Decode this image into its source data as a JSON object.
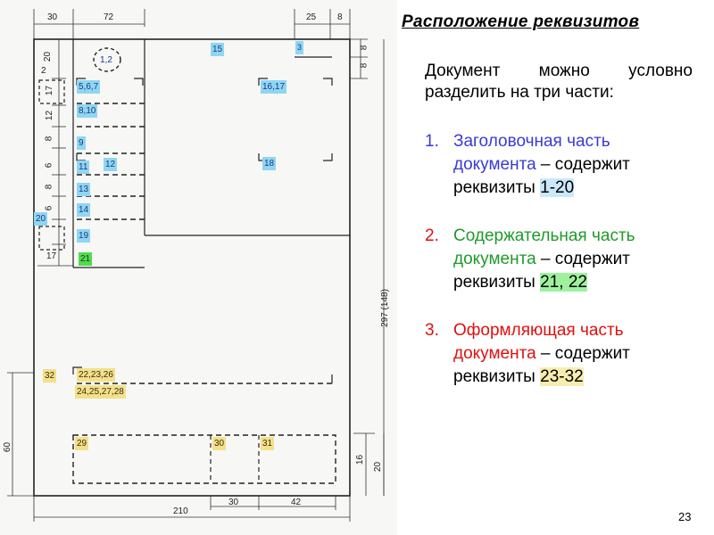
{
  "slide": {
    "title": "Расположение реквизитов",
    "intro": "Документ можно условно разделить на три части:",
    "items": [
      {
        "number": "1.",
        "part": "Заголовочная часть документа",
        "connector": " – содержит реквизиты ",
        "range": "1-20",
        "color": "#3a3ad6",
        "highlight": "#c9e9fb"
      },
      {
        "number": "2.",
        "part": "Содержательная часть документа",
        "connector": " – содержит реквизиты ",
        "range": "21, 22",
        "color": "#1f9a2a",
        "highlight": "#9ef29e"
      },
      {
        "number": "3.",
        "part": "Оформляющая часть документа",
        "connector": " – содержит реквизиты ",
        "range": "23-32",
        "color": "#e01010",
        "highlight": "#f7edb0"
      }
    ],
    "page_number": "23"
  },
  "diagram": {
    "field_labels": {
      "f12": "1,2",
      "f567": "5,6,7",
      "f810": "8,10",
      "f9": "9",
      "f11": "11",
      "f12b": "12",
      "f13": "13",
      "f14": "14",
      "f15": "15",
      "f3": "3",
      "f1617": "16,17",
      "f18": "18",
      "f19": "19",
      "f20": "20",
      "f21": "21",
      "f32": "32",
      "f22": "22,23,26",
      "f24": "24,25,27,28",
      "f29": "29",
      "f30": "30",
      "f31": "31"
    },
    "dimensions": {
      "top_30": "30",
      "top_72": "72",
      "top_25": "25",
      "top_8": "8",
      "left_20": "20",
      "left_2": "2",
      "left_17": "17",
      "left_12": "12",
      "left_8": "8",
      "left_6a": "6",
      "left_8b": "8",
      "left_6b": "6",
      "left_17b": "17",
      "left_60": "60",
      "right_8a": "8",
      "right_8b": "8",
      "right_297": "297 (148)",
      "right_16": "16",
      "right_20": "20",
      "bottom_210": "210",
      "bottom_30": "30",
      "bottom_42": "42"
    }
  }
}
